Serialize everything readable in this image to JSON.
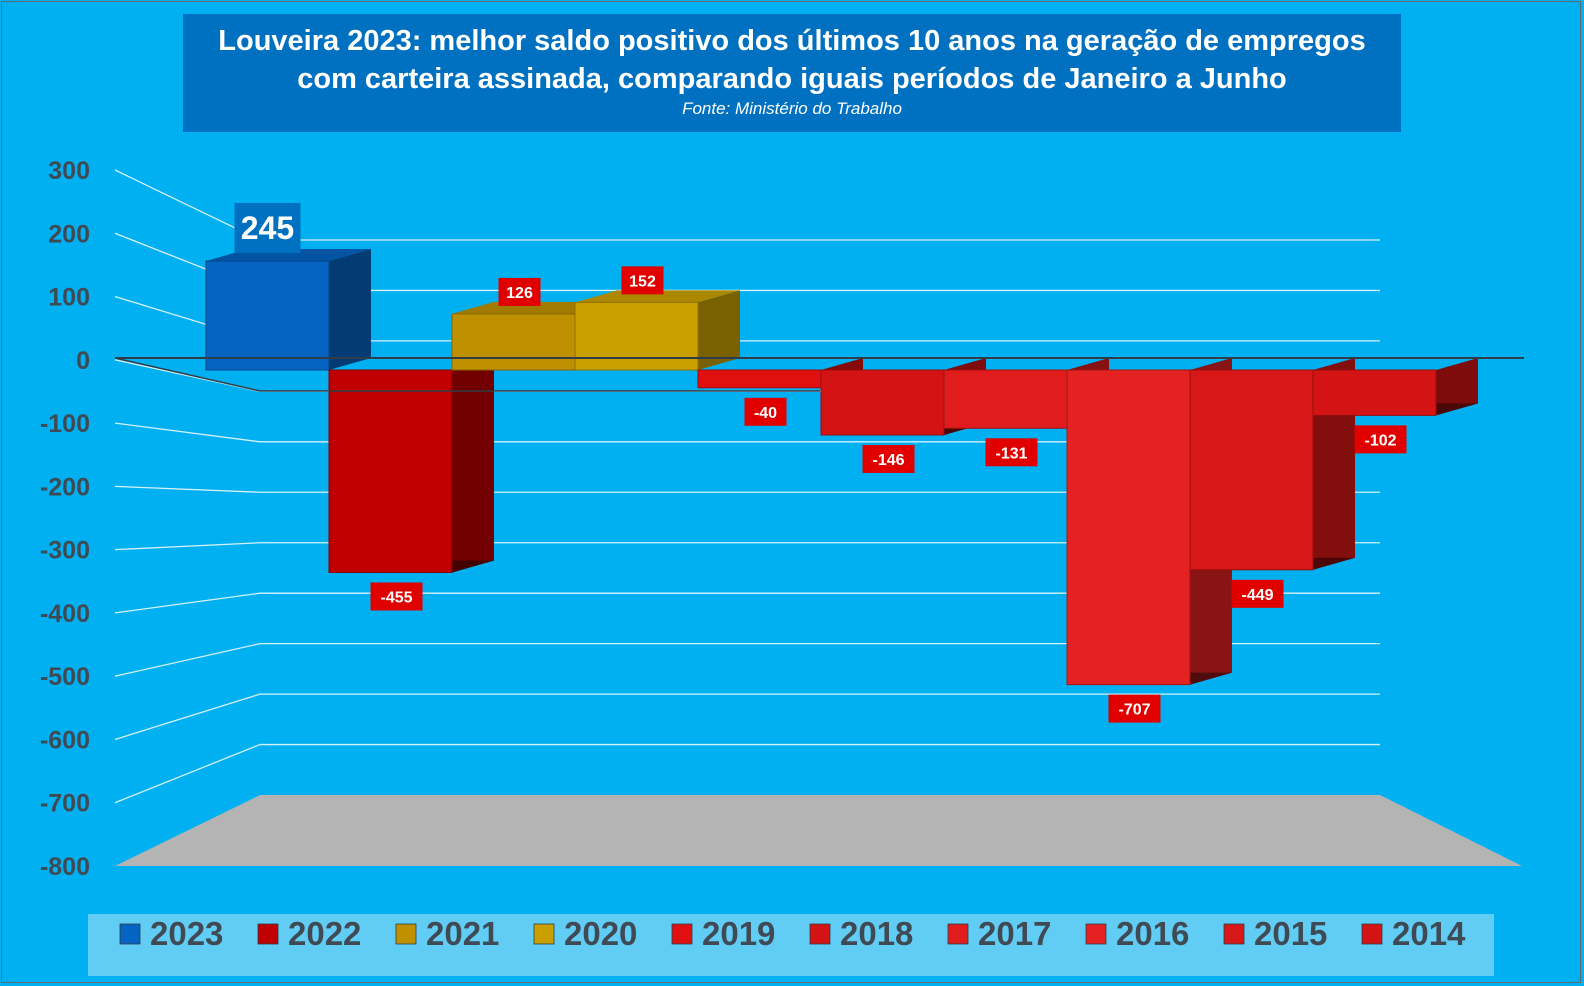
{
  "header": {
    "title_line1": "Louveira 2023: melhor saldo positivo dos últimos 10 anos na geração de empregos",
    "title_line2": "com carteira assinada, comparando  iguais períodos de Janeiro a Junho",
    "source": "Fonte: Ministério do Trabalho"
  },
  "chart_data": {
    "type": "bar",
    "categories": [
      "2023",
      "2022",
      "2021",
      "2020",
      "2019",
      "2018",
      "2017",
      "2016",
      "2015",
      "2014"
    ],
    "values": [
      245,
      -455,
      126,
      152,
      -40,
      -146,
      -131,
      -707,
      -449,
      -102
    ],
    "data_labels": [
      "245",
      "-455",
      "126",
      "152",
      "-40",
      "-146",
      "-131",
      "-707",
      "-449",
      "-102"
    ],
    "colors": [
      "#0563c1",
      "#c00000",
      "#bf9000",
      "#c9a000",
      "#e01010",
      "#d41414",
      "#e01c1c",
      "#e42222",
      "#d81818",
      "#d41414"
    ],
    "legend_entries": [
      "2023",
      "2022",
      "2021",
      "2020",
      "2019",
      "2018",
      "2017",
      "2016",
      "2015",
      "2014"
    ],
    "y_ticks": [
      "300",
      "200",
      "100",
      "0",
      "-100",
      "-200",
      "-300",
      "-400",
      "-500",
      "-600",
      "-700",
      "-800"
    ],
    "ylim": [
      -800,
      300
    ],
    "grid": true,
    "legend_position": "bottom",
    "three_d": true
  }
}
